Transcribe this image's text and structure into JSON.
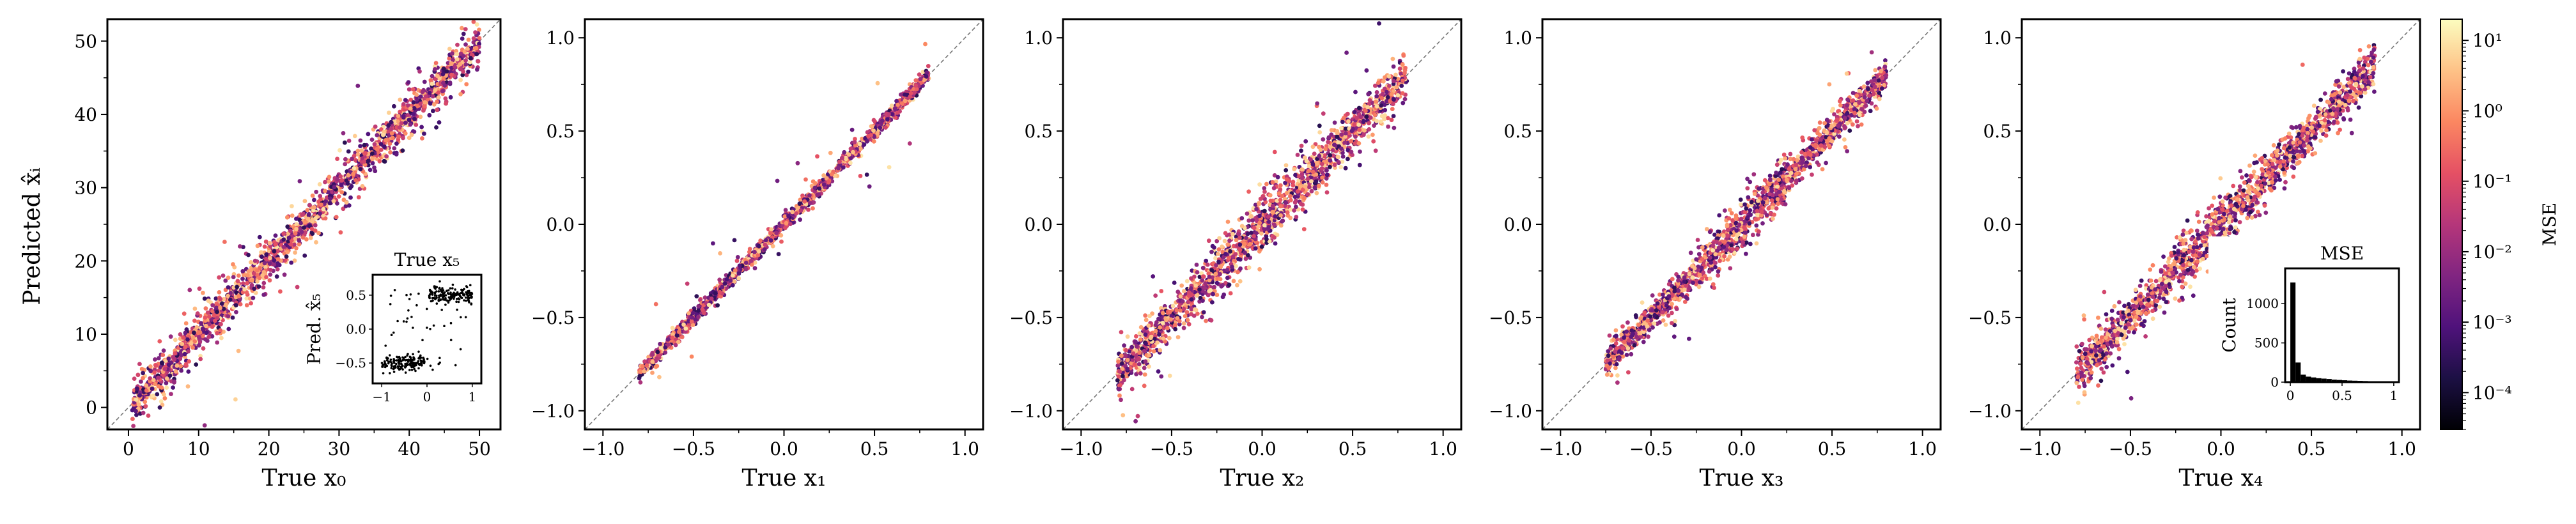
{
  "figure": {
    "ylabel": "Predicted x̂ᵢ",
    "colorbar_label": "MSE",
    "colorbar_ticks": [
      "10¹",
      "10⁰",
      "10⁻¹",
      "10⁻²",
      "10⁻³",
      "10⁻⁴"
    ]
  },
  "chart_data": [
    {
      "type": "scatter",
      "xlabel": "True x₀",
      "xlim": [
        -3,
        53
      ],
      "ylim": [
        -3,
        53
      ],
      "xticks": [
        0,
        10,
        20,
        30,
        40,
        50
      ],
      "yticks": [
        0,
        10,
        20,
        30,
        40,
        50
      ],
      "xtick_labels": [
        "0",
        "10",
        "20",
        "30",
        "40",
        "50"
      ],
      "ytick_labels": [
        "0",
        "10",
        "20",
        "30",
        "40",
        "50"
      ],
      "diagonal": true,
      "n_points": 1800,
      "trend": {
        "x_range": [
          0.5,
          50
        ],
        "slope": 1.0,
        "noise": [
          0.5,
          2.4
        ]
      },
      "colormap": "magma",
      "color_scale": "log"
    },
    {
      "type": "scatter",
      "xlabel": "True x₁",
      "xlim": [
        -1.1,
        1.1
      ],
      "ylim": [
        -1.1,
        1.1
      ],
      "xticks": [
        -1.0,
        -0.5,
        0.0,
        0.5,
        1.0
      ],
      "yticks": [
        -1.0,
        -0.5,
        0.0,
        0.5,
        1.0
      ],
      "xtick_labels": [
        "−1.0",
        "−0.5",
        "0.0",
        "0.5",
        "1.0"
      ],
      "ytick_labels": [
        "−1.0",
        "−0.5",
        "0.0",
        "0.5",
        "1.0"
      ],
      "diagonal": true,
      "n_points": 1600,
      "trend": {
        "x_range": [
          -0.8,
          0.8
        ],
        "slope": 1.0,
        "noise": [
          0.01,
          0.03
        ]
      },
      "colormap": "magma",
      "color_scale": "log"
    },
    {
      "type": "scatter",
      "xlabel": "True x₂",
      "xlim": [
        -1.1,
        1.1
      ],
      "ylim": [
        -1.1,
        1.1
      ],
      "xticks": [
        -1.0,
        -0.5,
        0.0,
        0.5,
        1.0
      ],
      "yticks": [
        -1.0,
        -0.5,
        0.0,
        0.5,
        1.0
      ],
      "xtick_labels": [
        "−1.0",
        "−0.5",
        "0.0",
        "0.5",
        "1.0"
      ],
      "ytick_labels": [
        "−1.0",
        "−0.5",
        "0.0",
        "0.5",
        "1.0"
      ],
      "diagonal": true,
      "n_points": 1600,
      "trend": {
        "x_range": [
          -0.8,
          0.8
        ],
        "slope": 1.0,
        "noise": [
          0.03,
          0.09
        ]
      },
      "colormap": "magma",
      "color_scale": "log"
    },
    {
      "type": "scatter",
      "xlabel": "True x₃",
      "xlim": [
        -1.1,
        1.1
      ],
      "ylim": [
        -1.1,
        1.1
      ],
      "xticks": [
        -1.0,
        -0.5,
        0.0,
        0.5,
        1.0
      ],
      "yticks": [
        -1.0,
        -0.5,
        0.0,
        0.5,
        1.0
      ],
      "xtick_labels": [
        "−1.0",
        "−0.5",
        "0.0",
        "0.5",
        "1.0"
      ],
      "ytick_labels": [
        "−1.0",
        "−0.5",
        "0.0",
        "0.5",
        "1.0"
      ],
      "diagonal": true,
      "n_points": 1600,
      "trend": {
        "x_range": [
          -0.75,
          0.8
        ],
        "slope": 1.0,
        "noise": [
          0.02,
          0.06
        ]
      },
      "colormap": "magma",
      "color_scale": "log"
    },
    {
      "type": "scatter",
      "xlabel": "True x₄",
      "xlim": [
        -1.1,
        1.1
      ],
      "ylim": [
        -1.1,
        1.1
      ],
      "xticks": [
        -1.0,
        -0.5,
        0.0,
        0.5,
        1.0
      ],
      "yticks": [
        -1.0,
        -0.5,
        0.0,
        0.5,
        1.0
      ],
      "xtick_labels": [
        "−1.0",
        "−0.5",
        "0.0",
        "0.5",
        "1.0"
      ],
      "ytick_labels": [
        "−1.0",
        "−0.5",
        "0.0",
        "0.5",
        "1.0"
      ],
      "diagonal": true,
      "n_points": 1600,
      "trend": {
        "x_range": [
          -0.8,
          0.85
        ],
        "slope": 1.0,
        "noise": [
          0.03,
          0.08
        ]
      },
      "colormap": "magma",
      "color_scale": "log"
    }
  ],
  "inset_scatter": {
    "type": "scatter",
    "title": "True x₅",
    "ylabel": "Pred. x̂₅",
    "xlim": [
      -1.2,
      1.2
    ],
    "ylim": [
      -0.8,
      0.8
    ],
    "xticks": [
      -1,
      0,
      1
    ],
    "yticks": [
      -0.5,
      0.0,
      0.5
    ],
    "xtick_labels": [
      "−1",
      "0",
      "1"
    ],
    "ytick_labels": [
      "−0.5",
      "0.0",
      "0.5"
    ],
    "clusters": [
      {
        "x_range": [
          -1.0,
          -0.05
        ],
        "y_center": -0.5,
        "n": 150
      },
      {
        "x_range": [
          0.05,
          1.0
        ],
        "y_center": 0.5,
        "n": 150
      }
    ],
    "scattered": 50,
    "color": "#000000"
  },
  "inset_hist": {
    "type": "bar",
    "title": "MSE",
    "ylabel": "Count",
    "xlim": [
      -0.05,
      1.05
    ],
    "ylim": [
      0,
      1450
    ],
    "xticks": [
      0,
      0.5,
      1
    ],
    "yticks": [
      0,
      500,
      1000
    ],
    "xtick_labels": [
      "0",
      "0.5",
      "1"
    ],
    "ytick_labels": [
      "0",
      "500",
      "1000"
    ],
    "bin_width": 0.05,
    "bins": [
      0.0,
      0.05,
      0.1,
      0.15,
      0.2,
      0.25,
      0.3,
      0.35,
      0.4,
      0.45,
      0.5,
      0.55,
      0.6,
      0.65,
      0.7,
      0.75,
      0.8,
      0.85,
      0.9,
      0.95
    ],
    "counts": [
      1270,
      250,
      95,
      70,
      60,
      50,
      45,
      40,
      32,
      28,
      24,
      20,
      18,
      16,
      14,
      12,
      11,
      10,
      9,
      8
    ],
    "color": "#000000"
  },
  "colorbar": {
    "type": "heatmap",
    "colormap": "magma",
    "scale": "log",
    "range": [
      3e-05,
      20
    ],
    "ticks": [
      10,
      1,
      0.1,
      0.01,
      0.001,
      0.0001
    ]
  },
  "colors": {
    "magma": [
      "#000004",
      "#1c1044",
      "#4f127b",
      "#812581",
      "#b5367a",
      "#e55064",
      "#fb8761",
      "#fec287",
      "#fcfdbf"
    ],
    "diagonal": "#777777"
  }
}
